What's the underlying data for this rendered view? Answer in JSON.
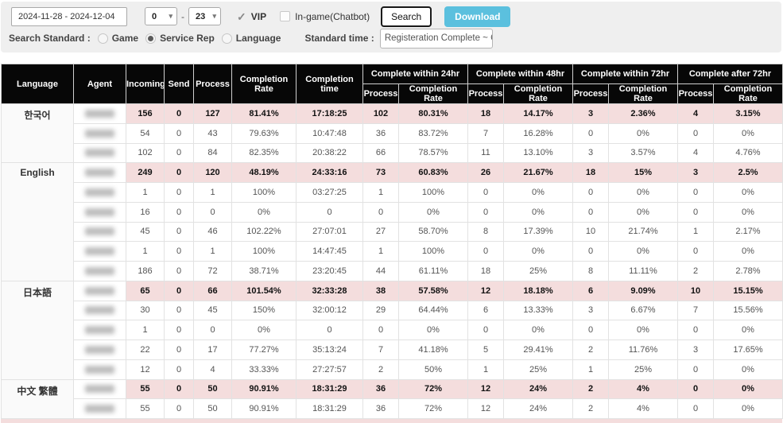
{
  "icons": {
    "check": "✓",
    "caret_down": "▾"
  },
  "toolbar": {
    "date_range": "2024-11-28 - 2024-12-04",
    "hour_from": "0",
    "hour_to": "23",
    "hour_separator": "-",
    "vip_label": "VIP",
    "vip_checked": true,
    "ingame_label": "In-game(Chatbot)",
    "ingame_checked": false,
    "search_label": "Search",
    "download_label": "Download",
    "download_color": "#5bc0de"
  },
  "filters": {
    "search_standard_label": "Search Standard :",
    "radios": [
      {
        "label": "Game",
        "selected": false
      },
      {
        "label": "Service Rep",
        "selected": true
      },
      {
        "label": "Language",
        "selected": false
      }
    ],
    "standard_time_label": "Standard time :",
    "standard_time_value": "Registeration Complete ~ Cor"
  },
  "table": {
    "columns": [
      "Language",
      "Agent",
      "Incoming",
      "Send",
      "Process",
      "Completion Rate",
      "Completion time"
    ],
    "groups": [
      "Complete within 24hr",
      "Complete within 48hr",
      "Complete within 72hr",
      "Complete after 72hr"
    ],
    "sub_columns": [
      "Process",
      "Completion Rate"
    ],
    "colors": {
      "summary_bg": "#f4dddd",
      "header_bg": "#070707"
    },
    "language_groups": [
      {
        "language": "한국어",
        "rows": [
          {
            "summary": true,
            "cells": [
              "156",
              "0",
              "127",
              "81.41%",
              "17:18:25",
              "102",
              "80.31%",
              "18",
              "14.17%",
              "3",
              "2.36%",
              "4",
              "3.15%"
            ]
          },
          {
            "summary": false,
            "cells": [
              "54",
              "0",
              "43",
              "79.63%",
              "10:47:48",
              "36",
              "83.72%",
              "7",
              "16.28%",
              "0",
              "0%",
              "0",
              "0%"
            ]
          },
          {
            "summary": false,
            "cells": [
              "102",
              "0",
              "84",
              "82.35%",
              "20:38:22",
              "66",
              "78.57%",
              "11",
              "13.10%",
              "3",
              "3.57%",
              "4",
              "4.76%"
            ]
          }
        ]
      },
      {
        "language": "English",
        "rows": [
          {
            "summary": true,
            "cells": [
              "249",
              "0",
              "120",
              "48.19%",
              "24:33:16",
              "73",
              "60.83%",
              "26",
              "21.67%",
              "18",
              "15%",
              "3",
              "2.5%"
            ]
          },
          {
            "summary": false,
            "cells": [
              "1",
              "0",
              "1",
              "100%",
              "03:27:25",
              "1",
              "100%",
              "0",
              "0%",
              "0",
              "0%",
              "0",
              "0%"
            ]
          },
          {
            "summary": false,
            "cells": [
              "16",
              "0",
              "0",
              "0%",
              "0",
              "0",
              "0%",
              "0",
              "0%",
              "0",
              "0%",
              "0",
              "0%"
            ]
          },
          {
            "summary": false,
            "cells": [
              "45",
              "0",
              "46",
              "102.22%",
              "27:07:01",
              "27",
              "58.70%",
              "8",
              "17.39%",
              "10",
              "21.74%",
              "1",
              "2.17%"
            ]
          },
          {
            "summary": false,
            "cells": [
              "1",
              "0",
              "1",
              "100%",
              "14:47:45",
              "1",
              "100%",
              "0",
              "0%",
              "0",
              "0%",
              "0",
              "0%"
            ]
          },
          {
            "summary": false,
            "cells": [
              "186",
              "0",
              "72",
              "38.71%",
              "23:20:45",
              "44",
              "61.11%",
              "18",
              "25%",
              "8",
              "11.11%",
              "2",
              "2.78%"
            ]
          }
        ]
      },
      {
        "language": "日本語",
        "rows": [
          {
            "summary": true,
            "cells": [
              "65",
              "0",
              "66",
              "101.54%",
              "32:33:28",
              "38",
              "57.58%",
              "12",
              "18.18%",
              "6",
              "9.09%",
              "10",
              "15.15%"
            ]
          },
          {
            "summary": false,
            "cells": [
              "30",
              "0",
              "45",
              "150%",
              "32:00:12",
              "29",
              "64.44%",
              "6",
              "13.33%",
              "3",
              "6.67%",
              "7",
              "15.56%"
            ]
          },
          {
            "summary": false,
            "cells": [
              "1",
              "0",
              "0",
              "0%",
              "0",
              "0",
              "0%",
              "0",
              "0%",
              "0",
              "0%",
              "0",
              "0%"
            ]
          },
          {
            "summary": false,
            "cells": [
              "22",
              "0",
              "17",
              "77.27%",
              "35:13:24",
              "7",
              "41.18%",
              "5",
              "29.41%",
              "2",
              "11.76%",
              "3",
              "17.65%"
            ]
          },
          {
            "summary": false,
            "cells": [
              "12",
              "0",
              "4",
              "33.33%",
              "27:27:57",
              "2",
              "50%",
              "1",
              "25%",
              "1",
              "25%",
              "0",
              "0%"
            ]
          }
        ]
      },
      {
        "language": "中文 繁體",
        "rows": [
          {
            "summary": true,
            "cells": [
              "55",
              "0",
              "50",
              "90.91%",
              "18:31:29",
              "36",
              "72%",
              "12",
              "24%",
              "2",
              "4%",
              "0",
              "0%"
            ]
          },
          {
            "summary": false,
            "cells": [
              "55",
              "0",
              "50",
              "90.91%",
              "18:31:29",
              "36",
              "72%",
              "12",
              "24%",
              "2",
              "4%",
              "0",
              "0%"
            ]
          }
        ]
      }
    ],
    "cutoff_row_visible": true
  }
}
